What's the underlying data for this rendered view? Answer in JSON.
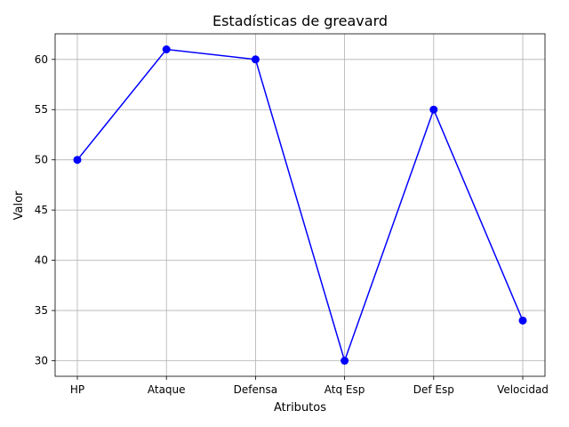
{
  "chart_data": {
    "type": "line",
    "title": "Estadísticas de greavard",
    "xlabel": "Atributos",
    "ylabel": "Valor",
    "categories": [
      "HP",
      "Ataque",
      "Defensa",
      "Atq Esp",
      "Def Esp",
      "Velocidad"
    ],
    "series": [
      {
        "values": [
          50,
          61,
          60,
          30,
          55,
          34
        ],
        "color": "#0000ff",
        "marker": "circle"
      }
    ],
    "yticks": [
      30,
      35,
      40,
      45,
      50,
      55,
      60
    ],
    "ylim": [
      28.45,
      62.55
    ],
    "grid": true
  }
}
